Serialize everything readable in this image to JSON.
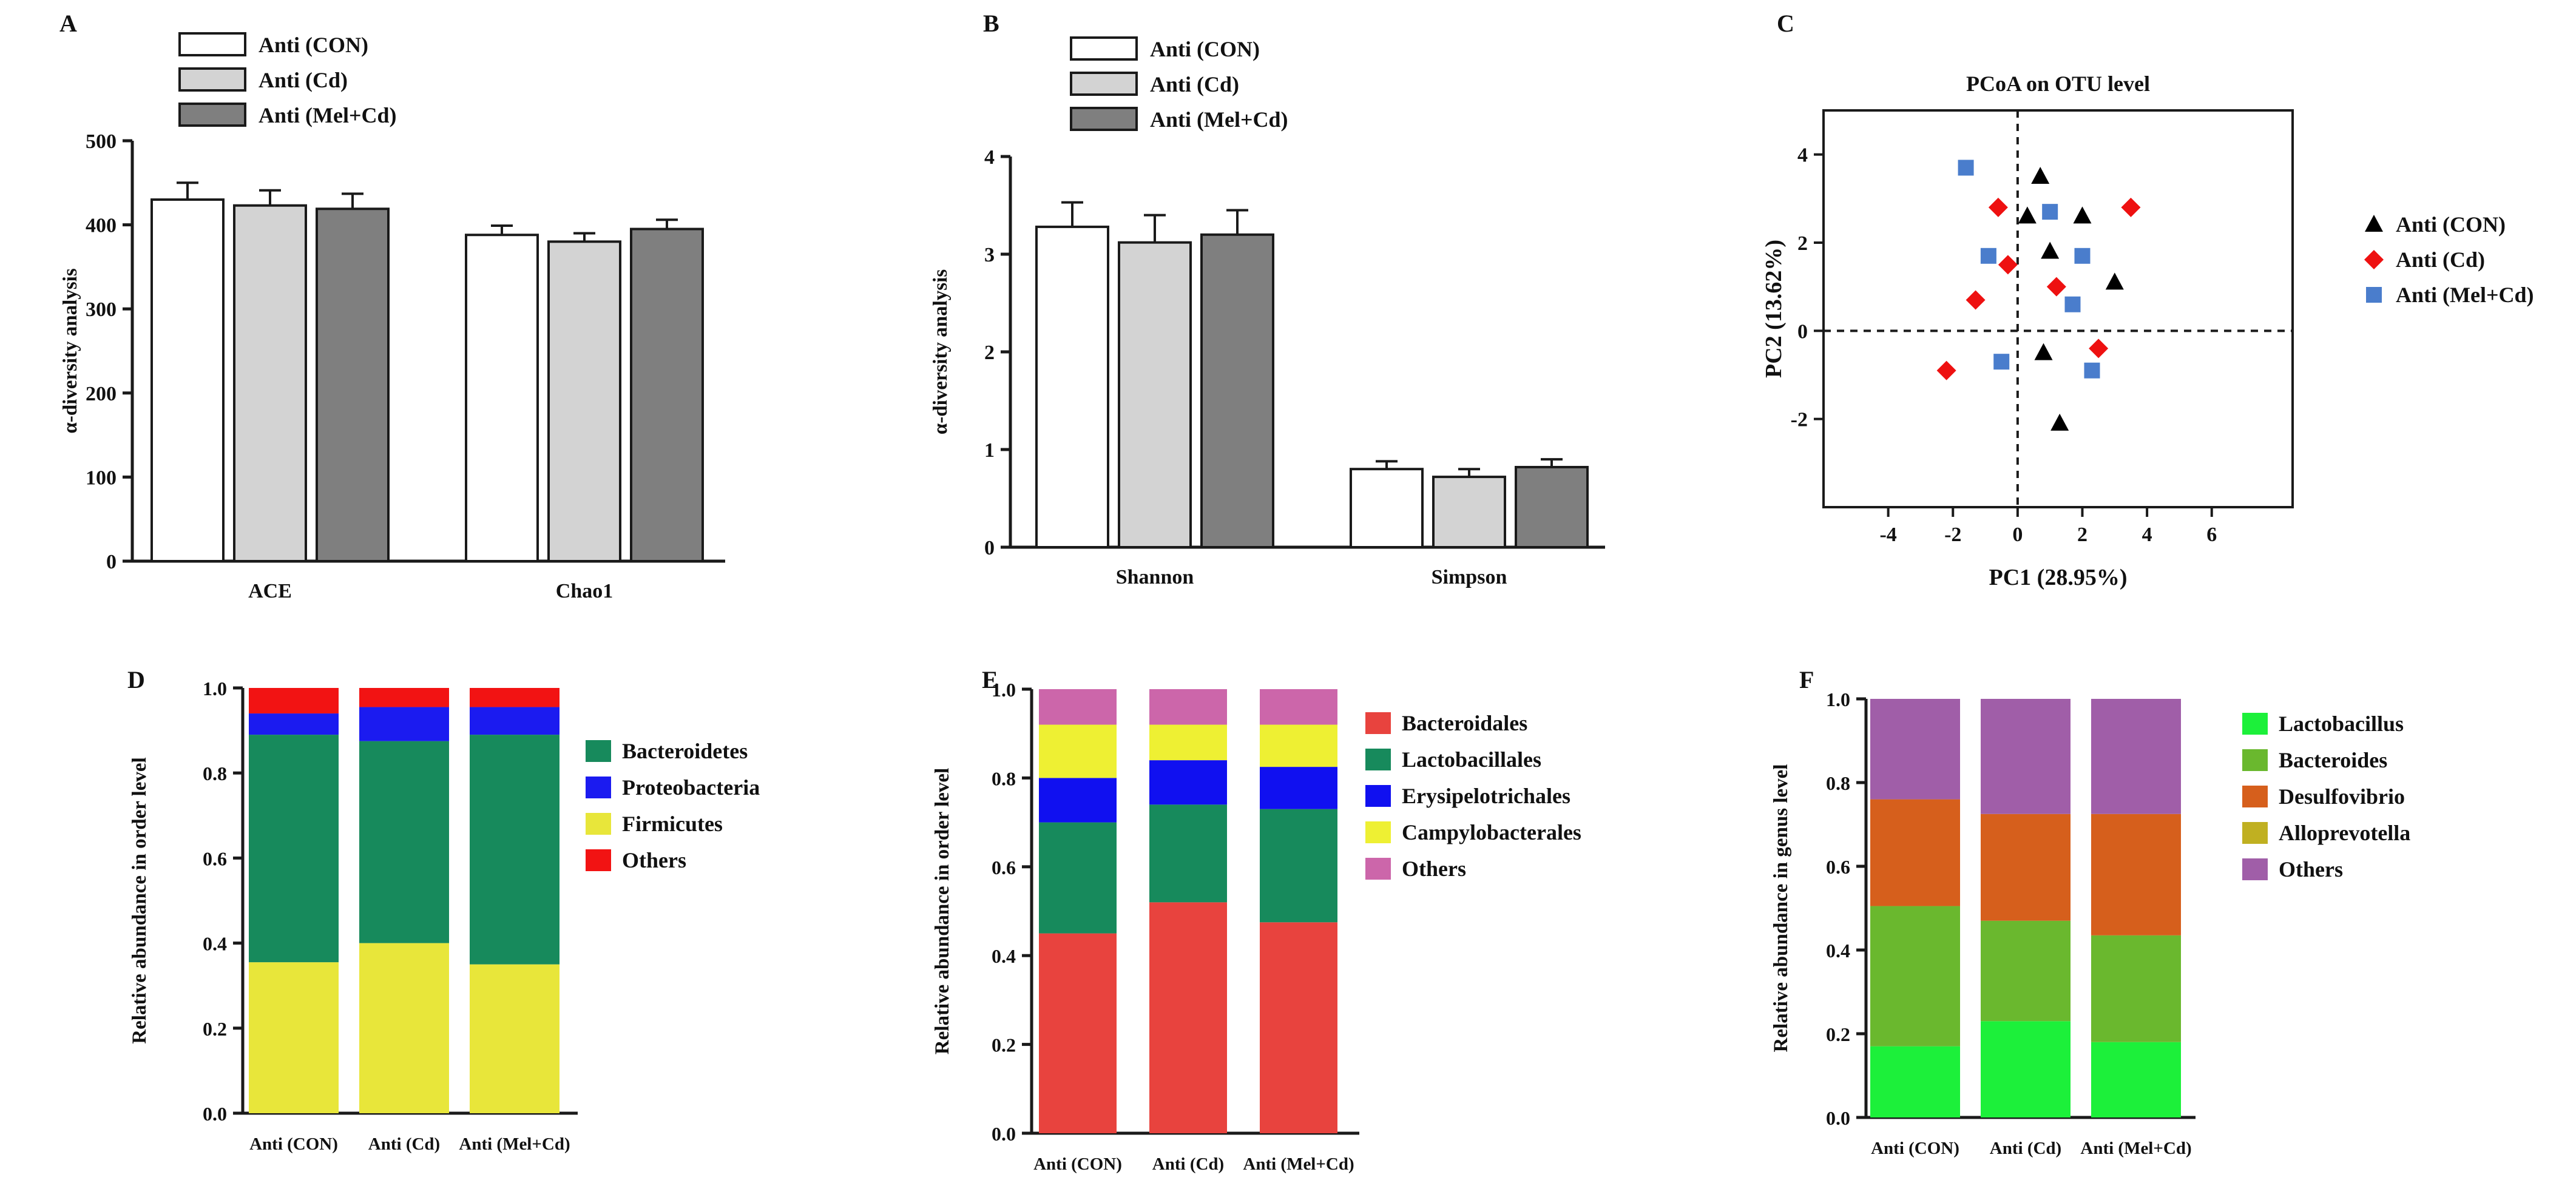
{
  "colors": {
    "axis": "#1a1a1a",
    "ab_con": "#ffffff",
    "ab_cd": "#d3d3d3",
    "ab_melcd": "#7f7f7f",
    "Bacteroidetes": "#178a5c",
    "Proteobacteria": "#1b1bf0",
    "Firmicutes": "#e8e63a",
    "Others_D": "#f21313",
    "Bacteroidales": "#e8433e",
    "Lactobacillales": "#178a5c",
    "Erysipelotrichales": "#1010f0",
    "Campylobacterales": "#eef033",
    "Others_E": "#cc66aa",
    "Lactobacillus": "#1cf03a",
    "Bacteroides": "#6ab82e",
    "Desulfovibrio": "#d65f1c",
    "Alloprevotella": "#c0b021",
    "Others_F": "#a05ea8",
    "pcoa_con": "#000000",
    "pcoa_cd": "#ee1111",
    "pcoa_melcd": "#4a7dcc"
  },
  "chart_data": [
    {
      "id": "A",
      "panel_label": "A",
      "type": "bar",
      "title": "",
      "categories": [
        "ACE",
        "Chao1"
      ],
      "series": [
        {
          "name": "Anti (CON)",
          "values": [
            430,
            388
          ],
          "errors": [
            20,
            11
          ]
        },
        {
          "name": "Anti (Cd)",
          "values": [
            423,
            380
          ],
          "errors": [
            18,
            10
          ]
        },
        {
          "name": "Anti (Mel+Cd)",
          "values": [
            419,
            395
          ],
          "errors": [
            18,
            11
          ]
        }
      ],
      "xlabel": "",
      "ylabel": "α-diversity analysis",
      "ylim": [
        0,
        500
      ],
      "yticks": [
        "0",
        "100",
        "200",
        "300",
        "400",
        "500"
      ],
      "legend_position": "top-left"
    },
    {
      "id": "B",
      "panel_label": "B",
      "type": "bar",
      "title": "",
      "categories": [
        "Shannon",
        "Simpson"
      ],
      "series": [
        {
          "name": "Anti (CON)",
          "values": [
            3.28,
            0.8
          ],
          "errors": [
            0.25,
            0.08
          ]
        },
        {
          "name": "Anti (Cd)",
          "values": [
            3.12,
            0.72
          ],
          "errors": [
            0.28,
            0.08
          ]
        },
        {
          "name": "Anti (Mel+Cd)",
          "values": [
            3.2,
            0.82
          ],
          "errors": [
            0.25,
            0.08
          ]
        }
      ],
      "xlabel": "",
      "ylabel": "α-diversity analysis",
      "ylim": [
        0,
        4
      ],
      "yticks": [
        "0",
        "1",
        "2",
        "3",
        "4"
      ],
      "legend_position": "top-left"
    },
    {
      "id": "C",
      "panel_label": "C",
      "type": "scatter",
      "title": "PCoA on OTU level",
      "xlabel": "PC1 (28.95%)",
      "ylabel": "PC2 (13.62%)",
      "xlim": [
        -6,
        8.5
      ],
      "ylim": [
        -4,
        5
      ],
      "xticks": [
        "-4",
        "-2",
        "0",
        "2",
        "4",
        "6"
      ],
      "yticks": [
        "-2",
        "0",
        "2",
        "4"
      ],
      "legend_position": "right",
      "series": [
        {
          "name": "Anti (CON)",
          "marker": "triangle",
          "points": [
            [
              0.7,
              3.5
            ],
            [
              0.3,
              2.6
            ],
            [
              1.0,
              1.8
            ],
            [
              2.0,
              2.6
            ],
            [
              3.0,
              1.1
            ],
            [
              0.8,
              -0.5
            ],
            [
              1.3,
              -2.1
            ]
          ]
        },
        {
          "name": "Anti (Cd)",
          "marker": "diamond",
          "points": [
            [
              -0.6,
              2.8
            ],
            [
              3.5,
              2.8
            ],
            [
              -0.3,
              1.5
            ],
            [
              1.2,
              1.0
            ],
            [
              -1.3,
              0.7
            ],
            [
              2.5,
              -0.4
            ],
            [
              -2.2,
              -0.9
            ]
          ]
        },
        {
          "name": "Anti (Mel+Cd)",
          "marker": "square",
          "points": [
            [
              -1.6,
              3.7
            ],
            [
              1.0,
              2.7
            ],
            [
              -0.9,
              1.7
            ],
            [
              2.0,
              1.7
            ],
            [
              1.7,
              0.6
            ],
            [
              -0.5,
              -0.7
            ],
            [
              2.3,
              -0.9
            ]
          ]
        }
      ]
    },
    {
      "id": "D",
      "panel_label": "D",
      "type": "stacked-bar",
      "title": "",
      "categories": [
        "Anti (CON)",
        "Anti (Cd)",
        "Anti (Mel+Cd)"
      ],
      "series": [
        {
          "name": "Firmicutes",
          "values": [
            0.355,
            0.4,
            0.35
          ]
        },
        {
          "name": "Bacteroidetes",
          "values": [
            0.535,
            0.475,
            0.54
          ]
        },
        {
          "name": "Proteobacteria",
          "values": [
            0.05,
            0.08,
            0.065
          ]
        },
        {
          "name": "Others",
          "values": [
            0.06,
            0.045,
            0.045
          ]
        }
      ],
      "legend": [
        "Bacteroidetes",
        "Proteobacteria",
        "Firmicutes",
        "Others"
      ],
      "ylabel": "Relative abundance in order level",
      "ylim": [
        0,
        1
      ],
      "yticks": [
        "0.0",
        "0.2",
        "0.4",
        "0.6",
        "0.8",
        "1.0"
      ],
      "legend_position": "right"
    },
    {
      "id": "E",
      "panel_label": "E",
      "type": "stacked-bar",
      "title": "",
      "categories": [
        "Anti (CON)",
        "Anti (Cd)",
        "Anti (Mel+Cd)"
      ],
      "series": [
        {
          "name": "Bacteroidales",
          "values": [
            0.45,
            0.52,
            0.475
          ]
        },
        {
          "name": "Lactobacillales",
          "values": [
            0.25,
            0.22,
            0.255
          ]
        },
        {
          "name": "Erysipelotrichales",
          "values": [
            0.1,
            0.1,
            0.095
          ]
        },
        {
          "name": "Campylobacterales",
          "values": [
            0.12,
            0.08,
            0.095
          ]
        },
        {
          "name": "Others",
          "values": [
            0.08,
            0.08,
            0.08
          ]
        }
      ],
      "legend": [
        "Bacteroidales",
        "Lactobacillales",
        "Erysipelotrichales",
        "Campylobacterales",
        "Others"
      ],
      "ylabel": "Relative abundance in order level",
      "ylim": [
        0,
        1
      ],
      "yticks": [
        "0.0",
        "0.2",
        "0.4",
        "0.6",
        "0.8",
        "1.0"
      ],
      "legend_position": "right"
    },
    {
      "id": "F",
      "panel_label": "F",
      "type": "stacked-bar",
      "title": "",
      "categories": [
        "Anti (CON)",
        "Anti  (Cd)",
        "Anti (Mel+Cd)"
      ],
      "series": [
        {
          "name": "Lactobacillus",
          "values": [
            0.17,
            0.23,
            0.18
          ]
        },
        {
          "name": "Bacteroides",
          "values": [
            0.335,
            0.24,
            0.255
          ]
        },
        {
          "name": "Alloprevotella",
          "values": [
            0.0,
            0.0,
            0.0
          ]
        },
        {
          "name": "Desulfovibrio",
          "values": [
            0.255,
            0.255,
            0.29
          ]
        },
        {
          "name": "Others",
          "values": [
            0.24,
            0.275,
            0.275
          ]
        }
      ],
      "legend": [
        "Lactobacillus",
        "Bacteroides",
        "Desulfovibrio",
        "Alloprevotella",
        "Others"
      ],
      "ylabel": "Relative abundance in genus level",
      "ylim": [
        0,
        1
      ],
      "yticks": [
        "0.0",
        "0.2",
        "0.4",
        "0.6",
        "0.8",
        "1.0"
      ],
      "legend_position": "right"
    }
  ]
}
